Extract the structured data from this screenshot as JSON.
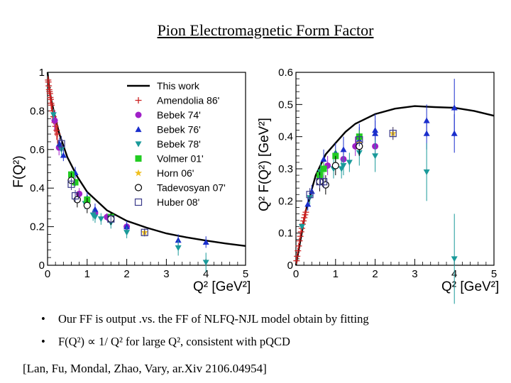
{
  "slide": {
    "title": "Pion Electromagnetic Form Factor",
    "bullets": [
      "Our FF is output .vs. the FF of NLFQ-NJL model obtain by fitting",
      "F(Q²) ∝ 1/ Q² for large Q², consistent with pQCD"
    ],
    "citation": "[Lan, Fu, Mondal, Zhao, Vary, ar.Xiv 2106.04954]"
  },
  "colors": {
    "theory": "#000000",
    "amendolia": "#cc2222",
    "bebek74": "#a020c8",
    "bebek76": "#1a2ecc",
    "bebek78": "#1a9a9a",
    "volmer": "#22cc22",
    "horn": "#f0c020",
    "tadevosyan": "#000000",
    "huber": "#3a3a8a"
  },
  "chart_data": [
    {
      "type": "scatter",
      "xlabel": "Q² [GeV²]",
      "ylabel": "F(Q²)",
      "xlim": [
        0,
        5
      ],
      "ylim": [
        0,
        1
      ],
      "xticks": [
        "0",
        "1",
        "2",
        "3",
        "4",
        "5"
      ],
      "yticks": [
        "0",
        "0.2",
        "0.4",
        "0.6",
        "0.8",
        "1"
      ],
      "legend_position": "top-right",
      "legend": [
        "This work",
        "Amendolia 86'",
        "Bebek 74'",
        "Bebek 76'",
        "Bebek 78'",
        "Volmer 01'",
        "Horn 06'",
        "Tadevosyan 07'",
        "Huber 08'"
      ],
      "series": [
        {
          "name": "This work",
          "marker": "line",
          "x": [
            0,
            0.05,
            0.1,
            0.2,
            0.3,
            0.5,
            0.75,
            1,
            1.5,
            2,
            2.5,
            3,
            3.5,
            4,
            4.5,
            5
          ],
          "y": [
            1,
            0.91,
            0.85,
            0.76,
            0.68,
            0.56,
            0.46,
            0.38,
            0.285,
            0.23,
            0.195,
            0.165,
            0.145,
            0.128,
            0.113,
            0.1
          ]
        },
        {
          "name": "Amendolia 86'",
          "marker": "plus",
          "x": [
            0.015,
            0.02,
            0.03,
            0.04,
            0.05,
            0.06,
            0.07,
            0.08,
            0.09,
            0.1,
            0.12,
            0.15,
            0.18,
            0.2,
            0.23,
            0.25
          ],
          "y": [
            0.96,
            0.95,
            0.93,
            0.91,
            0.9,
            0.89,
            0.87,
            0.86,
            0.84,
            0.83,
            0.8,
            0.77,
            0.74,
            0.72,
            0.7,
            0.68
          ],
          "err": [
            0.02,
            0.02,
            0.02,
            0.02,
            0.02,
            0.03,
            0.03,
            0.03,
            0.03,
            0.03,
            0.04,
            0.04,
            0.05,
            0.05,
            0.05,
            0.05
          ]
        },
        {
          "name": "Bebek 74'",
          "marker": "circle-filled",
          "x": [
            0.18,
            0.29,
            0.6,
            0.8,
            1.2,
            1.5,
            2.0
          ],
          "y": [
            0.75,
            0.61,
            0.44,
            0.37,
            0.27,
            0.25,
            0.2
          ],
          "err": [
            0.05,
            0.04,
            0.03,
            0.03,
            0.02,
            0.02,
            0.02
          ]
        },
        {
          "name": "Bebek 76'",
          "marker": "triangle-up",
          "x": [
            0.3,
            0.4,
            0.7,
            1.0,
            1.2,
            1.6,
            2.0,
            3.3,
            4.0
          ],
          "y": [
            0.63,
            0.57,
            0.48,
            0.35,
            0.29,
            0.24,
            0.2,
            0.13,
            0.12
          ],
          "err": [
            0.03,
            0.03,
            0.03,
            0.03,
            0.03,
            0.03,
            0.03,
            0.03,
            0.03
          ]
        },
        {
          "name": "Bebek 78'",
          "marker": "triangle-down",
          "x": [
            0.15,
            0.35,
            0.62,
            0.95,
            1.15,
            1.2,
            1.35,
            1.6,
            2.0,
            3.3,
            4.0
          ],
          "y": [
            0.78,
            0.6,
            0.46,
            0.32,
            0.26,
            0.25,
            0.24,
            0.22,
            0.17,
            0.09,
            0.015
          ],
          "err": [
            0.03,
            0.03,
            0.03,
            0.03,
            0.03,
            0.03,
            0.03,
            0.03,
            0.03,
            0.04,
            0.05
          ]
        },
        {
          "name": "Volmer 01'",
          "marker": "square-filled",
          "x": [
            0.6,
            0.7,
            1.0,
            1.6
          ],
          "y": [
            0.47,
            0.43,
            0.34,
            0.25
          ],
          "err": [
            0.02,
            0.02,
            0.02,
            0.02
          ]
        },
        {
          "name": "Horn 06'",
          "marker": "star",
          "x": [
            1.6,
            2.45
          ],
          "y": [
            0.24,
            0.17
          ],
          "err": [
            0.02,
            0.02
          ]
        },
        {
          "name": "Tadevosyan 07'",
          "marker": "circle-open",
          "x": [
            0.6,
            0.75,
            1.0,
            1.6
          ],
          "y": [
            0.44,
            0.34,
            0.31,
            0.24
          ],
          "err": [
            0.04,
            0.04,
            0.04,
            0.03
          ]
        },
        {
          "name": "Huber 08'",
          "marker": "square-open",
          "x": [
            0.35,
            0.6,
            0.7,
            1.6,
            2.45
          ],
          "y": [
            0.63,
            0.42,
            0.36,
            0.24,
            0.17
          ],
          "err": [
            0.04,
            0.03,
            0.03,
            0.02,
            0.02
          ]
        }
      ]
    },
    {
      "type": "scatter",
      "xlabel": "Q² [GeV²]",
      "ylabel": "Q² F(Q²) [GeV²]",
      "xlim": [
        0,
        5
      ],
      "ylim": [
        0,
        0.6
      ],
      "xticks": [
        "0",
        "1",
        "2",
        "3",
        "4",
        "5"
      ],
      "yticks": [
        "0",
        "0.1",
        "0.2",
        "0.3",
        "0.4",
        "0.5",
        "0.6"
      ],
      "series": [
        {
          "name": "This work",
          "marker": "line",
          "x": [
            0,
            0.25,
            0.5,
            0.75,
            1,
            1.25,
            1.5,
            2,
            2.5,
            3,
            3.5,
            4,
            4.5,
            5
          ],
          "y": [
            0,
            0.17,
            0.28,
            0.345,
            0.38,
            0.415,
            0.44,
            0.47,
            0.487,
            0.495,
            0.492,
            0.49,
            0.48,
            0.465
          ]
        },
        {
          "name": "Amendolia 86'",
          "marker": "plus",
          "x": [
            0.015,
            0.03,
            0.05,
            0.07,
            0.09,
            0.11,
            0.13,
            0.15,
            0.17,
            0.19,
            0.21,
            0.23,
            0.25
          ],
          "y": [
            0.014,
            0.028,
            0.045,
            0.06,
            0.076,
            0.09,
            0.104,
            0.115,
            0.128,
            0.138,
            0.148,
            0.157,
            0.165
          ],
          "err": [
            0.006,
            0.006,
            0.007,
            0.007,
            0.008,
            0.008,
            0.009,
            0.01,
            0.011,
            0.012,
            0.013,
            0.014,
            0.015
          ]
        },
        {
          "name": "Bebek 74'",
          "marker": "circle-filled",
          "x": [
            0.6,
            0.8,
            1.2,
            1.5,
            2.0
          ],
          "y": [
            0.26,
            0.31,
            0.33,
            0.37,
            0.37
          ],
          "err": [
            0.03,
            0.03,
            0.03,
            0.03,
            0.03
          ]
        },
        {
          "name": "Bebek 76'",
          "marker": "triangle-up",
          "x": [
            0.3,
            0.7,
            1.0,
            1.2,
            1.6,
            2.0,
            3.3,
            4.0
          ],
          "y": [
            0.19,
            0.33,
            0.35,
            0.36,
            0.4,
            0.42,
            0.45,
            0.49
          ],
          "err": [
            0.02,
            0.03,
            0.03,
            0.04,
            0.04,
            0.05,
            0.05,
            0.09
          ]
        },
        {
          "name": "Bebek 76'",
          "marker": "triangle-up",
          "x": [
            0.4,
            1.6,
            2.0,
            3.3,
            4.0
          ],
          "y": [
            0.23,
            0.39,
            0.41,
            0.41,
            0.41
          ],
          "err": [
            0.02,
            0.04,
            0.04,
            0.05,
            0.06
          ]
        },
        {
          "name": "Bebek 78'",
          "marker": "triangle-down",
          "x": [
            0.15,
            0.35,
            0.62,
            0.95,
            1.15,
            1.2,
            1.35,
            1.6,
            2.0,
            3.3,
            4.0
          ],
          "y": [
            0.12,
            0.21,
            0.29,
            0.3,
            0.3,
            0.31,
            0.32,
            0.35,
            0.34,
            0.29,
            0.02
          ],
          "err": [
            0.01,
            0.02,
            0.03,
            0.03,
            0.03,
            0.03,
            0.03,
            0.04,
            0.05,
            0.09,
            0.14
          ]
        },
        {
          "name": "Volmer 01'",
          "marker": "square-filled",
          "x": [
            0.6,
            0.7,
            1.0,
            1.6
          ],
          "y": [
            0.28,
            0.3,
            0.34,
            0.4
          ],
          "err": [
            0.02,
            0.02,
            0.02,
            0.02
          ]
        },
        {
          "name": "Horn 06'",
          "marker": "star",
          "x": [
            1.6,
            2.45
          ],
          "y": [
            0.38,
            0.41
          ],
          "err": [
            0.02,
            0.02
          ]
        },
        {
          "name": "Tadevosyan 07'",
          "marker": "circle-open",
          "x": [
            0.6,
            0.75,
            1.0,
            1.6
          ],
          "y": [
            0.26,
            0.25,
            0.31,
            0.37
          ],
          "err": [
            0.03,
            0.03,
            0.03,
            0.03
          ]
        },
        {
          "name": "Huber 08'",
          "marker": "square-open",
          "x": [
            0.35,
            0.6,
            0.7,
            1.6,
            2.45
          ],
          "y": [
            0.22,
            0.26,
            0.26,
            0.39,
            0.41
          ],
          "err": [
            0.02,
            0.02,
            0.02,
            0.02,
            0.02
          ]
        }
      ]
    }
  ]
}
